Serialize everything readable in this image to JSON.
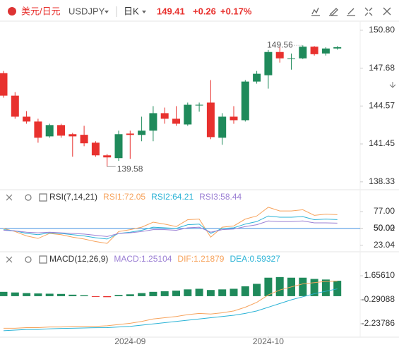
{
  "header": {
    "symbol_name": "美元/日元",
    "symbol": "USDJPY",
    "period": "日K",
    "price": "149.41",
    "change": "+0.26",
    "change_pct": "+0.17%"
  },
  "chart_data": [
    {
      "type": "candlestick",
      "open": [
        147.27,
        145.42,
        143.69,
        143.29,
        142.07,
        143.0,
        142.25,
        142.2,
        141.55,
        140.51,
        140.28,
        142.3,
        142.19,
        142.54,
        143.98,
        143.52,
        143.05,
        144.61,
        144.85,
        141.96,
        143.69,
        143.4,
        146.58,
        147.1,
        149.01,
        148.43,
        148.49,
        149.45,
        148.89,
        149.3
      ],
      "high": [
        147.45,
        145.71,
        144.15,
        143.52,
        143.11,
        143.11,
        142.36,
        142.94,
        141.67,
        140.63,
        142.54,
        142.54,
        143.69,
        144.56,
        144.44,
        144.56,
        144.85,
        144.85,
        146.7,
        143.98,
        144.56,
        146.7,
        147.45,
        149.18,
        149.4,
        148.89,
        149.56,
        149.5,
        149.4,
        149.5
      ],
      "low": [
        145.25,
        143.52,
        143.11,
        141.55,
        141.96,
        141.96,
        140.4,
        141.26,
        140.4,
        139.58,
        140.05,
        140.22,
        141.67,
        141.67,
        143.11,
        142.94,
        142.94,
        144.1,
        141.84,
        141.38,
        143.11,
        143.29,
        146.41,
        146.0,
        148.14,
        147.56,
        148.43,
        148.72,
        148.72,
        149.2
      ],
      "close": [
        145.42,
        143.69,
        143.29,
        141.96,
        143.0,
        142.13,
        142.07,
        141.5,
        140.51,
        140.34,
        142.25,
        142.19,
        142.54,
        143.98,
        143.52,
        143.11,
        144.67,
        144.67,
        142.01,
        143.69,
        143.4,
        146.58,
        147.22,
        149.01,
        148.49,
        148.49,
        149.45,
        148.83,
        149.3,
        149.41
      ],
      "up_color": "#1f8a5b",
      "down_color": "#e8312e",
      "ylim": [
        137.74,
        151.49
      ],
      "yticks": [
        {
          "value": 150.8,
          "label": "150.80"
        },
        147.68,
        144.57,
        141.45,
        138.33
      ],
      "xticks": [
        {
          "value": 11,
          "label": "2024-09"
        },
        {
          "value": 23,
          "label": "2024-10"
        }
      ],
      "max_label": 149.56,
      "min_label": 139.58
    },
    {
      "type": "line",
      "title": "RSI(7,14,21)",
      "series": [
        {
          "name": "RSI1:72.05",
          "color": "#f7a35c",
          "values": [
            50,
            45,
            38,
            34,
            42,
            40,
            36,
            33,
            29,
            26,
            45,
            48,
            52,
            60,
            57,
            53,
            64,
            65,
            36,
            52,
            54,
            65,
            70,
            84,
            78,
            78,
            80,
            71,
            73,
            72.05
          ]
        },
        {
          "name": "RSI2:64.21",
          "color": "#2bb3d6",
          "values": [
            48,
            46,
            42,
            40,
            43,
            42,
            40,
            38,
            35,
            33,
            42,
            44,
            47,
            52,
            51,
            50,
            56,
            57,
            42,
            50,
            51,
            57,
            61,
            70,
            68,
            68,
            69,
            64,
            65,
            64.21
          ]
        },
        {
          "name": "RSI3:58.44",
          "color": "#9b7fd4",
          "values": [
            47,
            46,
            44,
            43,
            44,
            43,
            42,
            41,
            39,
            37,
            42,
            43,
            45,
            48,
            48,
            47,
            51,
            52,
            44,
            48,
            49,
            53,
            56,
            62,
            61,
            61,
            62,
            59,
            59,
            58.44
          ]
        }
      ],
      "ylim": [
        13.66,
        111
      ],
      "yticks": [
        {
          "value": 77,
          "label": "77.00"
        },
        {
          "value": 50,
          "label": "50.00"
        },
        50.02,
        23.04
      ],
      "reference_line": 50,
      "reference_color": "#3d8fe0"
    },
    {
      "type": "combo",
      "title": "MACD(12,26,9)",
      "series": [
        {
          "name": "MACD:1.25104",
          "color": "#9b7fd4",
          "kind": "bar",
          "values": [
            0.35,
            0.3,
            0.25,
            0.22,
            0.2,
            0.18,
            0.12,
            0.08,
            -0.05,
            -0.08,
            0.1,
            0.15,
            0.25,
            0.35,
            0.4,
            0.45,
            0.55,
            0.6,
            0.5,
            0.55,
            0.6,
            0.8,
            1.0,
            1.5,
            1.55,
            1.5,
            1.5,
            1.4,
            1.35,
            1.25104
          ]
        },
        {
          "name": "DIF:1.21879",
          "color": "#f7a35c",
          "kind": "line",
          "values": [
            -2.6,
            -2.6,
            -2.55,
            -2.55,
            -2.5,
            -2.5,
            -2.45,
            -2.45,
            -2.45,
            -2.4,
            -2.3,
            -2.2,
            -2.05,
            -1.85,
            -1.75,
            -1.65,
            -1.5,
            -1.4,
            -1.45,
            -1.35,
            -1.2,
            -0.9,
            -0.5,
            0.1,
            0.5,
            0.75,
            1.0,
            1.1,
            1.2,
            1.21879
          ]
        },
        {
          "name": "DEA:0.59327",
          "color": "#2bb3d6",
          "kind": "line",
          "values": [
            -2.8,
            -2.75,
            -2.7,
            -2.7,
            -2.65,
            -2.62,
            -2.6,
            -2.58,
            -2.56,
            -2.55,
            -2.5,
            -2.45,
            -2.35,
            -2.25,
            -2.15,
            -2.05,
            -1.95,
            -1.85,
            -1.75,
            -1.65,
            -1.55,
            -1.4,
            -1.2,
            -0.9,
            -0.6,
            -0.3,
            -0.05,
            0.2,
            0.4,
            0.59327
          ]
        }
      ],
      "up_color": "#1f8a5b",
      "down_color": "#e8312e",
      "ylim": [
        -3.2685,
        3.546
      ],
      "yticks": [
        {
          "value": 1.6561,
          "label": "1.65610"
        },
        -0.29088,
        -2.23786
      ]
    }
  ]
}
